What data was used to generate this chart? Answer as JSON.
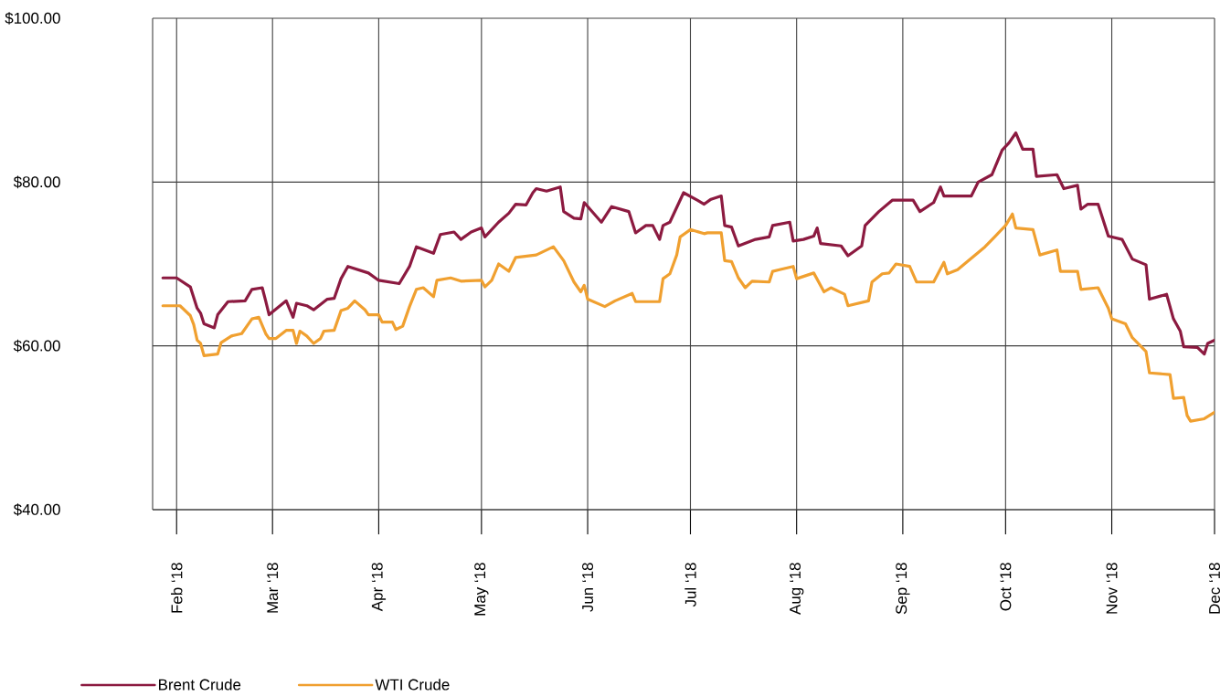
{
  "chart_data": {
    "type": "line",
    "xlim": [
      "2018-01-25",
      "2018-12-01"
    ],
    "ylim": [
      40,
      100
    ],
    "xticks": [
      {
        "value": "2018-02-01",
        "label": "Feb ‘18"
      },
      {
        "value": "2018-03-01",
        "label": "Mar ‘18"
      },
      {
        "value": "2018-04-01",
        "label": "Apr ‘18"
      },
      {
        "value": "2018-05-01",
        "label": "May ‘18"
      },
      {
        "value": "2018-06-01",
        "label": "Jun ‘18"
      },
      {
        "value": "2018-07-01",
        "label": "Jul ‘18"
      },
      {
        "value": "2018-08-01",
        "label": "Aug ‘18"
      },
      {
        "value": "2018-09-01",
        "label": "Sep ‘18"
      },
      {
        "value": "2018-10-01",
        "label": "Oct ‘18"
      },
      {
        "value": "2018-11-01",
        "label": "Nov ‘18"
      },
      {
        "value": "2018-12-01",
        "label": "Dec ‘18"
      }
    ],
    "yticks": [
      {
        "value": 40,
        "label": "$40.00"
      },
      {
        "value": 60,
        "label": "$60.00"
      },
      {
        "value": 80,
        "label": "$80.00"
      },
      {
        "value": 100,
        "label": "$100.00"
      }
    ],
    "grid": true,
    "legend": "bottom",
    "line_style": "solid",
    "marker": "none",
    "series": [
      {
        "name": "Brent Crude",
        "color": "#8c1a40",
        "x": [
          "2018-01-28",
          "2018-02-01",
          "2018-02-05",
          "2018-02-07",
          "2018-02-08",
          "2018-02-09",
          "2018-02-12",
          "2018-02-13",
          "2018-02-16",
          "2018-02-21",
          "2018-02-23",
          "2018-02-26",
          "2018-02-27",
          "2018-02-28",
          "2018-03-05",
          "2018-03-07",
          "2018-03-08",
          "2018-03-11",
          "2018-03-13",
          "2018-03-17",
          "2018-03-19",
          "2018-03-21",
          "2018-03-23",
          "2018-03-29",
          "2018-04-01",
          "2018-04-07",
          "2018-04-10",
          "2018-04-12",
          "2018-04-17",
          "2018-04-19",
          "2018-04-23",
          "2018-04-25",
          "2018-04-28",
          "2018-05-01",
          "2018-05-02",
          "2018-05-06",
          "2018-05-09",
          "2018-05-11",
          "2018-05-14",
          "2018-05-16",
          "2018-05-17",
          "2018-05-20",
          "2018-05-24",
          "2018-05-25",
          "2018-05-28",
          "2018-05-30",
          "2018-05-31",
          "2018-06-05",
          "2018-06-08",
          "2018-06-13",
          "2018-06-15",
          "2018-06-18",
          "2018-06-20",
          "2018-06-22",
          "2018-06-23",
          "2018-06-25",
          "2018-06-29",
          "2018-07-03",
          "2018-07-05",
          "2018-07-07",
          "2018-07-10",
          "2018-07-11",
          "2018-07-13",
          "2018-07-15",
          "2018-07-20",
          "2018-07-24",
          "2018-07-25",
          "2018-07-30",
          "2018-07-31",
          "2018-08-03",
          "2018-08-06",
          "2018-08-07",
          "2018-08-08",
          "2018-08-14",
          "2018-08-16",
          "2018-08-20",
          "2018-08-21",
          "2018-08-25",
          "2018-08-29",
          "2018-09-04",
          "2018-09-06",
          "2018-09-10",
          "2018-09-12",
          "2018-09-13",
          "2018-09-21",
          "2018-09-23",
          "2018-09-27",
          "2018-09-30",
          "2018-10-02",
          "2018-10-04",
          "2018-10-06",
          "2018-10-09",
          "2018-10-10",
          "2018-10-16",
          "2018-10-18",
          "2018-10-22",
          "2018-10-23",
          "2018-10-25",
          "2018-10-28",
          "2018-10-31",
          "2018-11-04",
          "2018-11-07",
          "2018-11-11",
          "2018-11-12",
          "2018-11-17",
          "2018-11-19",
          "2018-11-21",
          "2018-11-22",
          "2018-11-26",
          "2018-11-28",
          "2018-11-29",
          "2018-12-01"
        ],
        "values": [
          68.3,
          68.3,
          67.2,
          64.6,
          64.0,
          62.7,
          62.2,
          63.8,
          65.4,
          65.5,
          66.9,
          67.1,
          65.5,
          63.8,
          65.5,
          63.5,
          65.2,
          64.9,
          64.4,
          65.7,
          65.8,
          68.2,
          69.7,
          68.9,
          68.0,
          67.6,
          69.7,
          72.1,
          71.3,
          73.6,
          73.9,
          73.0,
          73.9,
          74.4,
          73.3,
          75.1,
          76.2,
          77.3,
          77.2,
          78.7,
          79.2,
          78.9,
          79.4,
          76.4,
          75.6,
          75.5,
          77.5,
          75.1,
          77.0,
          76.4,
          73.8,
          74.7,
          74.7,
          73.0,
          74.7,
          75.1,
          78.7,
          77.8,
          77.3,
          77.9,
          78.3,
          74.7,
          74.5,
          72.2,
          73.0,
          73.3,
          74.7,
          75.1,
          72.8,
          73.0,
          73.4,
          74.4,
          72.5,
          72.2,
          71.0,
          72.2,
          74.7,
          76.4,
          77.8,
          77.8,
          76.4,
          77.5,
          79.4,
          78.3,
          78.3,
          80.0,
          80.9,
          83.9,
          84.8,
          86.0,
          84.0,
          84.0,
          80.7,
          80.9,
          79.2,
          79.6,
          76.7,
          77.3,
          77.3,
          73.4,
          73.0,
          70.6,
          69.9,
          65.7,
          66.3,
          63.3,
          61.8,
          59.9,
          59.8,
          59.0,
          60.3,
          60.7
        ]
      },
      {
        "name": "WTI Crude",
        "color": "#f0a030",
        "x": [
          "2018-01-28",
          "2018-02-02",
          "2018-02-05",
          "2018-02-06",
          "2018-02-07",
          "2018-02-08",
          "2018-02-09",
          "2018-02-13",
          "2018-02-14",
          "2018-02-17",
          "2018-02-20",
          "2018-02-23",
          "2018-02-25",
          "2018-02-27",
          "2018-02-28",
          "2018-03-02",
          "2018-03-05",
          "2018-03-07",
          "2018-03-08",
          "2018-03-09",
          "2018-03-11",
          "2018-03-13",
          "2018-03-15",
          "2018-03-16",
          "2018-03-19",
          "2018-03-21",
          "2018-03-23",
          "2018-03-25",
          "2018-03-28",
          "2018-03-29",
          "2018-04-01",
          "2018-04-02",
          "2018-04-05",
          "2018-04-06",
          "2018-04-08",
          "2018-04-10",
          "2018-04-12",
          "2018-04-14",
          "2018-04-17",
          "2018-04-18",
          "2018-04-22",
          "2018-04-25",
          "2018-05-01",
          "2018-05-02",
          "2018-05-04",
          "2018-05-06",
          "2018-05-09",
          "2018-05-11",
          "2018-05-17",
          "2018-05-22",
          "2018-05-25",
          "2018-05-28",
          "2018-05-30",
          "2018-05-31",
          "2018-06-01",
          "2018-06-06",
          "2018-06-09",
          "2018-06-14",
          "2018-06-15",
          "2018-06-22",
          "2018-06-23",
          "2018-06-25",
          "2018-06-27",
          "2018-06-28",
          "2018-07-01",
          "2018-07-05",
          "2018-07-06",
          "2018-07-10",
          "2018-07-11",
          "2018-07-13",
          "2018-07-15",
          "2018-07-17",
          "2018-07-19",
          "2018-07-24",
          "2018-07-25",
          "2018-07-27",
          "2018-07-31",
          "2018-08-01",
          "2018-08-06",
          "2018-08-09",
          "2018-08-11",
          "2018-08-15",
          "2018-08-16",
          "2018-08-22",
          "2018-08-23",
          "2018-08-26",
          "2018-08-28",
          "2018-08-30",
          "2018-09-03",
          "2018-09-05",
          "2018-09-10",
          "2018-09-13",
          "2018-09-14",
          "2018-09-17",
          "2018-09-25",
          "2018-09-28",
          "2018-10-01",
          "2018-10-03",
          "2018-10-04",
          "2018-10-09",
          "2018-10-11",
          "2018-10-16",
          "2018-10-17",
          "2018-10-22",
          "2018-10-23",
          "2018-10-28",
          "2018-10-31",
          "2018-11-01",
          "2018-11-05",
          "2018-11-07",
          "2018-11-11",
          "2018-11-12",
          "2018-11-18",
          "2018-11-19",
          "2018-11-22",
          "2018-11-23",
          "2018-11-24",
          "2018-11-28",
          "2018-12-01"
        ],
        "values": [
          64.9,
          64.9,
          63.7,
          62.6,
          60.7,
          60.3,
          58.8,
          59.0,
          60.4,
          61.2,
          61.5,
          63.3,
          63.5,
          61.5,
          60.9,
          60.9,
          61.9,
          61.9,
          60.3,
          61.8,
          61.2,
          60.3,
          60.9,
          61.8,
          61.9,
          64.3,
          64.6,
          65.5,
          64.4,
          63.8,
          63.8,
          62.9,
          62.9,
          62.0,
          62.4,
          64.8,
          66.9,
          67.1,
          66.0,
          68.0,
          68.3,
          67.9,
          68.0,
          67.2,
          68.0,
          70.0,
          69.1,
          70.8,
          71.1,
          72.1,
          70.4,
          67.8,
          66.6,
          67.4,
          65.7,
          64.8,
          65.5,
          66.4,
          65.4,
          65.4,
          68.2,
          68.8,
          71.1,
          73.3,
          74.2,
          73.7,
          73.8,
          73.8,
          70.4,
          70.3,
          68.3,
          67.1,
          67.9,
          67.8,
          69.1,
          69.3,
          69.7,
          68.2,
          68.9,
          66.6,
          67.1,
          66.3,
          64.9,
          65.5,
          67.8,
          68.8,
          68.9,
          70.0,
          69.7,
          67.8,
          67.8,
          70.2,
          68.8,
          69.3,
          72.1,
          73.4,
          74.7,
          76.1,
          74.4,
          74.2,
          71.1,
          71.7,
          69.1,
          69.1,
          66.9,
          67.1,
          64.6,
          63.3,
          62.7,
          61.0,
          59.3,
          56.7,
          56.5,
          53.6,
          53.7,
          51.5,
          50.8,
          51.1,
          51.9
        ]
      }
    ]
  }
}
